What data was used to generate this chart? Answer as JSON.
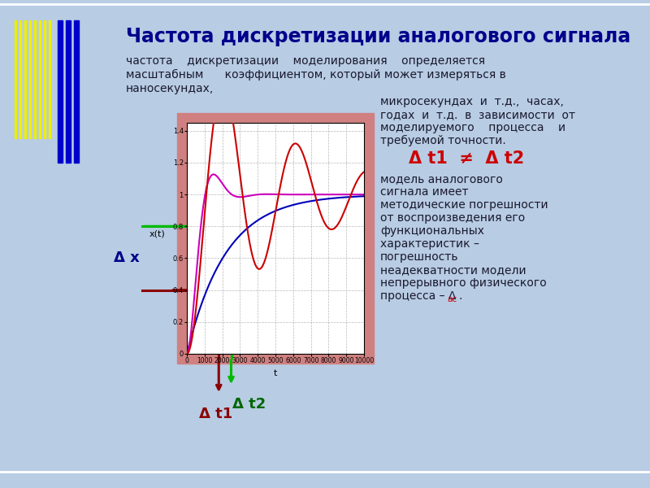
{
  "title": "Частота дискретизации аналогового сигнала",
  "sub1": "частота    дискретизации    моделирования    определяется",
  "sub2": "масштабным      коэффициентом, который может измеряться в",
  "sub3": "наносекундах,",
  "rt1": "микросекундах  и  т.д.,  часах,",
  "rt2": "годах  и  т.д.  в  зависимости  от",
  "rt3": "моделируемого    процесса    и",
  "rt4": "требуемой точности.",
  "rt5": "Δ t1  ≠  Δ t2",
  "rb1": "модель аналогового",
  "rb2": "сигнала имеет",
  "rb3": "методические погрешности",
  "rb4": "от воспроизведения его",
  "rb5": "функциональных",
  "rb6": "характеристик –",
  "rb7": "погрешность",
  "rb8": "неадекватности модели",
  "rb9": "непрерывного физического",
  "rb10": "процесса – Δ",
  "bg": "#b8cce4",
  "plot_surround": "#d08080",
  "plot_inner": "#ffffff",
  "title_color": "#00008b",
  "body_color": "#1a1a2e",
  "red_label_color": "#cc0000",
  "blue_line": "#0000bb",
  "red_line": "#cc0000",
  "magenta_line": "#cc00bb",
  "green_arrow": "#00bb00",
  "darkred_arrow": "#8b0000",
  "delta_x_color": "#00008b",
  "delta_t1_color": "#8b0000",
  "delta_t2_color": "#006600"
}
